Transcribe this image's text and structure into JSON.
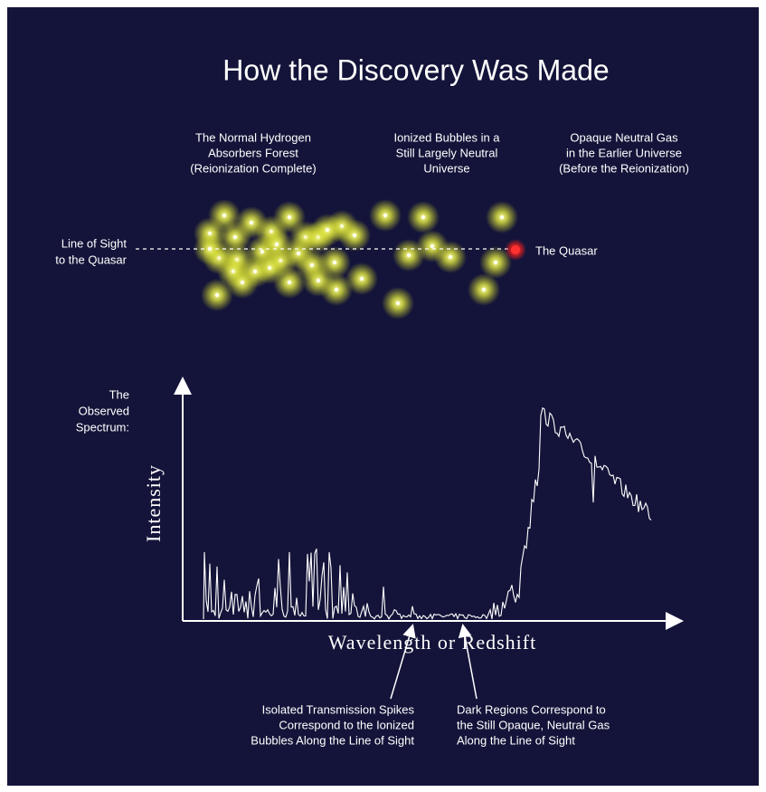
{
  "title": "How the Discovery Was Made",
  "regions": [
    {
      "lines": [
        "The Normal Hydrogen",
        "Absorbers Forest",
        "(Reionization Complete)"
      ]
    },
    {
      "lines": [
        "Ionized Bubbles in a",
        "Still Largely Neutral",
        "Universe"
      ]
    },
    {
      "lines": [
        "Opaque Neutral Gas",
        "in the Earlier Universe",
        "(Before the Reionization)"
      ]
    }
  ],
  "line_of_sight": [
    "Line of Sight",
    "to the Quasar"
  ],
  "quasar": "The Quasar",
  "spectrum_label": [
    "The",
    "Observed",
    "Spectrum:"
  ],
  "y_axis_label": "Intensity",
  "x_axis_label": "Wavelength or Redshift",
  "notes": [
    {
      "lines": [
        "Isolated Transmission Spikes",
        "Correspond to the Ionized",
        "Bubbles Along the Line of Sight"
      ]
    },
    {
      "lines": [
        "Dark Regions Correspond to",
        "the Still Opaque, Neutral Gas",
        "Along the Line of Sight"
      ]
    }
  ]
}
